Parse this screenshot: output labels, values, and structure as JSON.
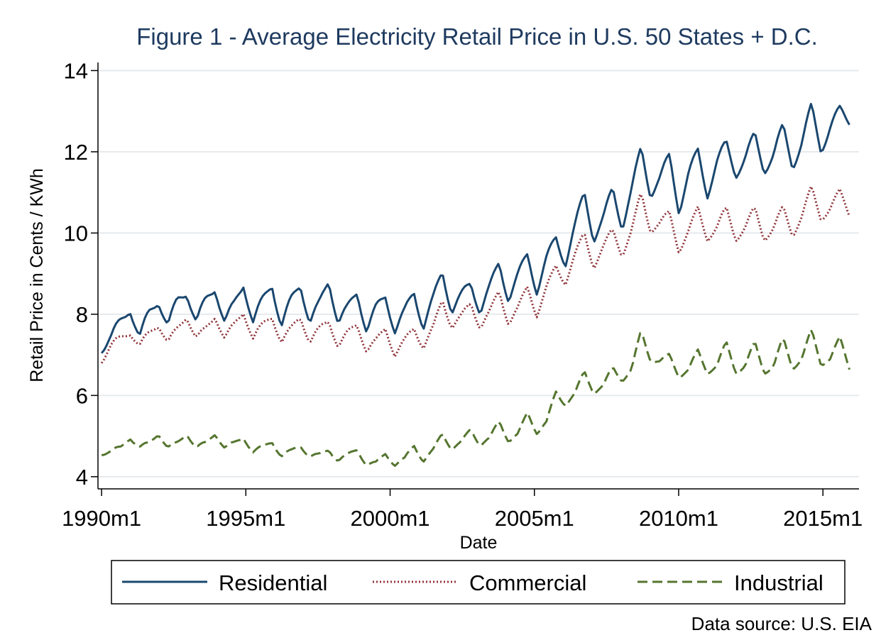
{
  "chart_data": {
    "type": "line",
    "title": "Figure 1 - Average Electricity Retail Price in U.S. 50 States + D.C.",
    "xlabel": "Date",
    "ylabel": "Retail Price in Cents / KWh",
    "source_note": "Data source: U.S. EIA",
    "x_ticks": [
      {
        "month_index": 0,
        "label": "1990m1"
      },
      {
        "month_index": 60,
        "label": "1995m1"
      },
      {
        "month_index": 120,
        "label": "2000m1"
      },
      {
        "month_index": 180,
        "label": "2005m1"
      },
      {
        "month_index": 240,
        "label": "2010m1"
      },
      {
        "month_index": 300,
        "label": "2015m1"
      }
    ],
    "xlim": [
      -1.5,
      315
    ],
    "y_ticks": [
      4,
      6,
      8,
      10,
      12,
      14
    ],
    "ylim": [
      3.7,
      14.2
    ],
    "grid": true,
    "legend_position": "bottom",
    "series": [
      {
        "name": "Residential",
        "color": "#1a476f",
        "dash": "solid",
        "base": [
          7.2,
          7.4,
          7.8,
          8.2,
          7.4,
          8.0,
          8.4,
          7.7,
          8.3,
          8.6,
          7.8,
          8.3,
          8.7,
          7.8,
          8.2,
          8.8,
          7.8,
          8.3,
          8.8,
          7.7,
          8.3,
          8.8,
          7.8,
          8.2,
          8.9,
          7.8,
          8.1,
          8.6,
          7.6,
          8.1,
          8.5,
          7.6,
          8.0,
          8.6,
          7.7,
          8.3,
          9.1,
          8.1,
          8.4,
          8.8,
          8.1,
          8.6,
          9.3,
          8.4,
          8.9,
          9.5,
          8.6,
          9.3,
          9.9,
          9.3,
          10.1,
          11.0,
          9.9,
          10.3,
          11.1,
          10.2,
          11.0,
          12.1,
          11.0,
          11.3,
          11.9,
          10.6,
          11.4,
          12.0,
          11.0,
          11.7,
          12.2,
          11.5,
          11.8,
          12.4,
          11.6,
          11.9,
          12.6,
          11.7,
          12.2,
          13.1,
          12.1,
          12.6,
          13.0,
          12.8
        ],
        "amp": 0.45
      },
      {
        "name": "Commercial",
        "color": "#90353b",
        "dash": "dotted",
        "base": [
          6.9,
          7.2,
          7.4,
          7.6,
          7.2,
          7.5,
          7.8,
          7.3,
          7.6,
          8.0,
          7.4,
          7.6,
          8.0,
          7.4,
          7.7,
          8.1,
          7.4,
          7.7,
          8.0,
          7.3,
          7.6,
          8.0,
          7.3,
          7.6,
          7.9,
          7.2,
          7.5,
          7.8,
          7.1,
          7.3,
          7.7,
          7.0,
          7.3,
          7.7,
          7.2,
          7.6,
          8.4,
          7.7,
          7.9,
          8.3,
          7.7,
          8.0,
          8.6,
          7.8,
          8.1,
          8.7,
          8.0,
          8.6,
          9.2,
          8.8,
          9.4,
          10.0,
          9.2,
          9.6,
          10.1,
          9.5,
          10.0,
          11.0,
          10.1,
          10.2,
          10.5,
          9.6,
          10.0,
          10.6,
          9.9,
          10.1,
          10.6,
          9.9,
          10.1,
          10.6,
          9.9,
          10.1,
          10.6,
          10.0,
          10.4,
          11.1,
          10.4,
          10.6,
          11.0,
          10.5
        ],
        "amp": 0.3
      },
      {
        "name": "Industrial",
        "color": "#55752f",
        "dash": "dashed",
        "base": [
          4.6,
          4.6,
          4.7,
          5.0,
          4.7,
          4.8,
          5.1,
          4.7,
          4.8,
          5.1,
          4.7,
          4.8,
          5.1,
          4.7,
          4.8,
          5.0,
          4.6,
          4.7,
          4.9,
          4.5,
          4.6,
          4.8,
          4.5,
          4.5,
          4.7,
          4.4,
          4.5,
          4.7,
          4.3,
          4.3,
          4.6,
          4.3,
          4.4,
          4.8,
          4.4,
          4.6,
          5.1,
          4.7,
          4.8,
          5.2,
          4.8,
          4.9,
          5.4,
          4.9,
          5.0,
          5.6,
          5.1,
          5.3,
          6.1,
          5.8,
          6.0,
          6.6,
          6.1,
          6.2,
          6.7,
          6.4,
          6.6,
          7.6,
          6.9,
          6.8,
          7.0,
          6.5,
          6.6,
          7.1,
          6.6,
          6.7,
          7.3,
          6.6,
          6.7,
          7.3,
          6.6,
          6.7,
          7.4,
          6.7,
          6.9,
          7.6,
          6.8,
          6.9,
          7.4,
          6.7
        ],
        "amp": 0.2
      }
    ]
  }
}
